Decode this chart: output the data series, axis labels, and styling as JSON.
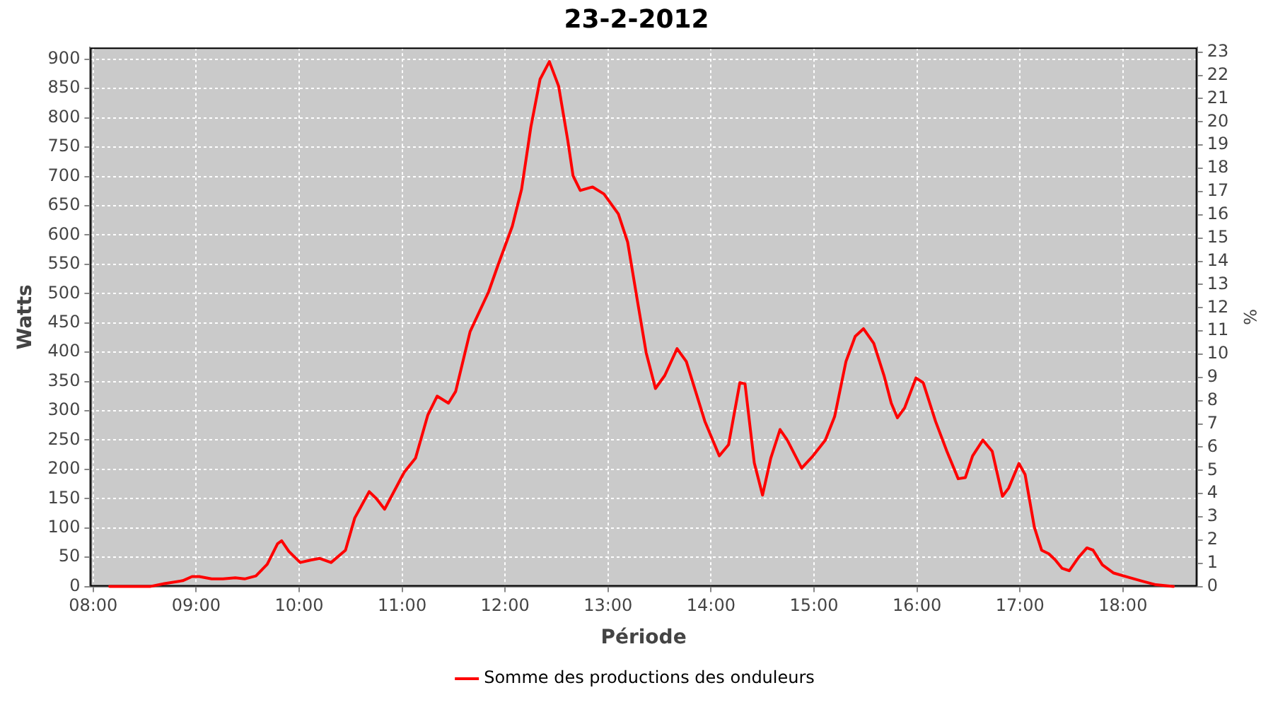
{
  "chart_data": {
    "type": "line",
    "title": "23-2-2012",
    "xlabel": "Période",
    "ylabel": "Watts",
    "y2label": "%",
    "xlim": [
      7.97,
      18.72
    ],
    "xticks": [
      {
        "value": 8,
        "label": "08:00"
      },
      {
        "value": 9,
        "label": "09:00"
      },
      {
        "value": 10,
        "label": "10:00"
      },
      {
        "value": 11,
        "label": "11:00"
      },
      {
        "value": 12,
        "label": "12:00"
      },
      {
        "value": 13,
        "label": "13:00"
      },
      {
        "value": 14,
        "label": "14:00"
      },
      {
        "value": 15,
        "label": "15:00"
      },
      {
        "value": 16,
        "label": "16:00"
      },
      {
        "value": 17,
        "label": "17:00"
      },
      {
        "value": 18,
        "label": "18:00"
      }
    ],
    "ylim": [
      0,
      920
    ],
    "yticks": [
      0,
      50,
      100,
      150,
      200,
      250,
      300,
      350,
      400,
      450,
      500,
      550,
      600,
      650,
      700,
      750,
      800,
      850,
      900
    ],
    "y2lim": [
      0,
      23.2
    ],
    "y2ticks": [
      0,
      1,
      2,
      3,
      4,
      5,
      6,
      7,
      8,
      9,
      10,
      11,
      12,
      13,
      14,
      15,
      16,
      17,
      18,
      19,
      20,
      21,
      22,
      23
    ],
    "grid": true,
    "legend": "bottom",
    "marker": "none",
    "line_style": "solid",
    "series": [
      {
        "name": "Somme des productions des onduleurs",
        "color": "#ff0000",
        "x": [
          8.16,
          8.55,
          8.69,
          8.87,
          8.96,
          9.03,
          9.15,
          9.26,
          9.38,
          9.47,
          9.58,
          9.69,
          9.79,
          9.83,
          9.9,
          10.01,
          10.11,
          10.2,
          10.31,
          10.45,
          10.54,
          10.68,
          10.75,
          10.83,
          11.02,
          11.13,
          11.25,
          11.34,
          11.45,
          11.52,
          11.66,
          11.84,
          11.93,
          12.07,
          12.16,
          12.25,
          12.34,
          12.43,
          12.52,
          12.61,
          12.66,
          12.73,
          12.85,
          12.96,
          13.1,
          13.19,
          13.28,
          13.37,
          13.46,
          13.55,
          13.67,
          13.76,
          13.85,
          13.94,
          14.08,
          14.17,
          14.28,
          14.33,
          14.42,
          14.5,
          14.58,
          14.67,
          14.74,
          14.88,
          14.99,
          15.11,
          15.2,
          15.31,
          15.4,
          15.48,
          15.58,
          15.68,
          15.75,
          15.81,
          15.88,
          15.99,
          16.06,
          16.18,
          16.29,
          16.4,
          16.47,
          16.54,
          16.64,
          16.73,
          16.83,
          16.89,
          16.99,
          17.05,
          17.14,
          17.21,
          17.28,
          17.34,
          17.41,
          17.48,
          17.57,
          17.65,
          17.71,
          17.8,
          17.91,
          18.05,
          18.19,
          18.32,
          18.49
        ],
        "values": [
          0,
          0,
          5,
          10,
          17,
          17,
          13,
          13,
          15,
          13,
          18,
          38,
          73,
          78,
          60,
          41,
          45,
          48,
          41,
          62,
          117,
          162,
          150,
          132,
          195,
          219,
          293,
          325,
          313,
          333,
          435,
          503,
          548,
          615,
          678,
          784,
          866,
          896,
          854,
          760,
          701,
          676,
          682,
          670,
          636,
          588,
          493,
          399,
          338,
          360,
          406,
          384,
          333,
          282,
          223,
          242,
          348,
          346,
          211,
          156,
          219,
          268,
          250,
          202,
          223,
          250,
          290,
          384,
          427,
          440,
          415,
          360,
          313,
          288,
          305,
          356,
          348,
          282,
          231,
          184,
          186,
          223,
          250,
          231,
          154,
          168,
          210,
          191,
          101,
          62,
          56,
          46,
          31,
          27,
          50,
          66,
          62,
          37,
          23,
          16,
          9,
          3,
          0
        ]
      }
    ]
  }
}
